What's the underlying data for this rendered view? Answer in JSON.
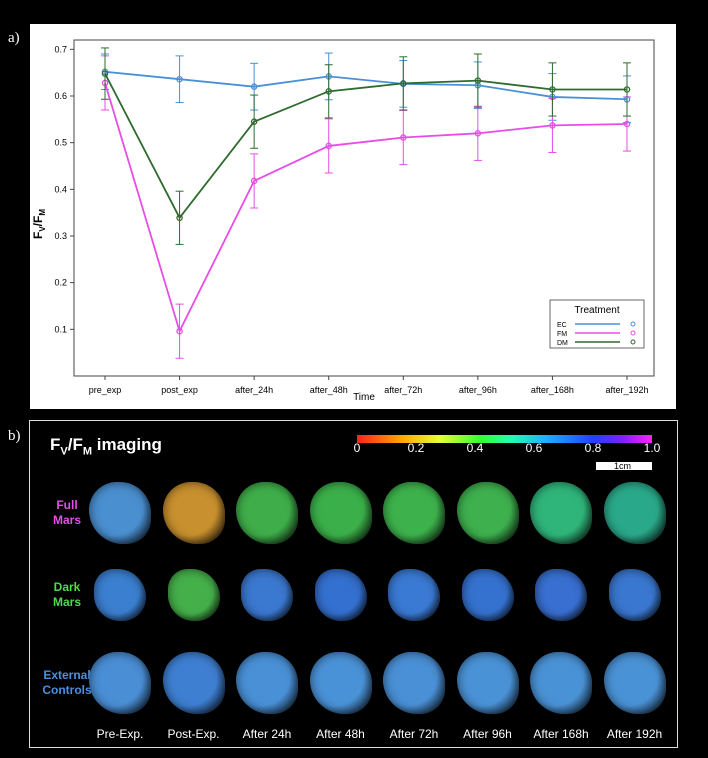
{
  "panel_a_label": "a)",
  "panel_b_label": "b)",
  "chart_data": {
    "type": "line",
    "xlabel": "Time",
    "ylabel_main": "F",
    "ylabel_sub1": "V",
    "ylabel_sub2": "M",
    "categories": [
      "pre_exp",
      "post_exp",
      "after_24h",
      "after_48h",
      "after_72h",
      "after_96h",
      "after_168h",
      "after_192h"
    ],
    "ylim": [
      0,
      0.72
    ],
    "yticks": [
      0.1,
      0.2,
      0.3,
      0.4,
      0.5,
      0.6,
      0.7
    ],
    "legend_title": "Treatment",
    "legend_position": "bottom-right",
    "series": [
      {
        "name": "EC",
        "color": "#4a90d9",
        "values": [
          0.652,
          0.636,
          0.62,
          0.642,
          0.626,
          0.623,
          0.598,
          0.593
        ],
        "errors": [
          0.038,
          0.05,
          0.05,
          0.05,
          0.05,
          0.05,
          0.05,
          0.05
        ]
      },
      {
        "name": "FM",
        "color": "#e84de8",
        "values": [
          0.628,
          0.096,
          0.418,
          0.493,
          0.511,
          0.52,
          0.537,
          0.54
        ],
        "errors": [
          0.058,
          0.058,
          0.058,
          0.058,
          0.058,
          0.058,
          0.058,
          0.058
        ]
      },
      {
        "name": "DM",
        "color": "#2e6b2e",
        "values": [
          0.648,
          0.339,
          0.545,
          0.61,
          0.627,
          0.633,
          0.614,
          0.614
        ],
        "errors": [
          0.055,
          0.057,
          0.057,
          0.057,
          0.057,
          0.057,
          0.057,
          0.057
        ]
      }
    ]
  },
  "imaging": {
    "title_main": "F",
    "title_sub1": "V",
    "title_sub2": "M",
    "title_rest": " imaging",
    "colorbar_ticks": [
      "0",
      "0.2",
      "0.4",
      "0.6",
      "0.8",
      "1.0"
    ],
    "scale_label": "1cm",
    "rows": [
      {
        "label_line1": "Full",
        "label_line2": "Mars",
        "color": "#e84de8"
      },
      {
        "label_line1": "Dark",
        "label_line2": "Mars",
        "color": "#4ddb4d"
      },
      {
        "label_line1": "External",
        "label_line2": "Controls",
        "color": "#4a90e0"
      }
    ],
    "columns": [
      "Pre-Exp.",
      "Post-Exp.",
      "After 24h",
      "After 48h",
      "After 72h",
      "After 96h",
      "After 168h",
      "After 192h"
    ],
    "tile_colors": [
      [
        "#4a8fd0",
        "#c8902e",
        "#3fae4a",
        "#3bb04a",
        "#3db24c",
        "#3eb04e",
        "#2fb57a",
        "#2aa98a"
      ],
      [
        "#3b7fd0",
        "#45b04a",
        "#3b78d0",
        "#3470cf",
        "#3a7ad4",
        "#3572d0",
        "#386fd0",
        "#3a77d0"
      ],
      [
        "#4a8ed5",
        "#3e7fd2",
        "#4990d6",
        "#4a92d7",
        "#4a90d6",
        "#4a92d6",
        "#4a92d6",
        "#4a92d6"
      ]
    ]
  }
}
